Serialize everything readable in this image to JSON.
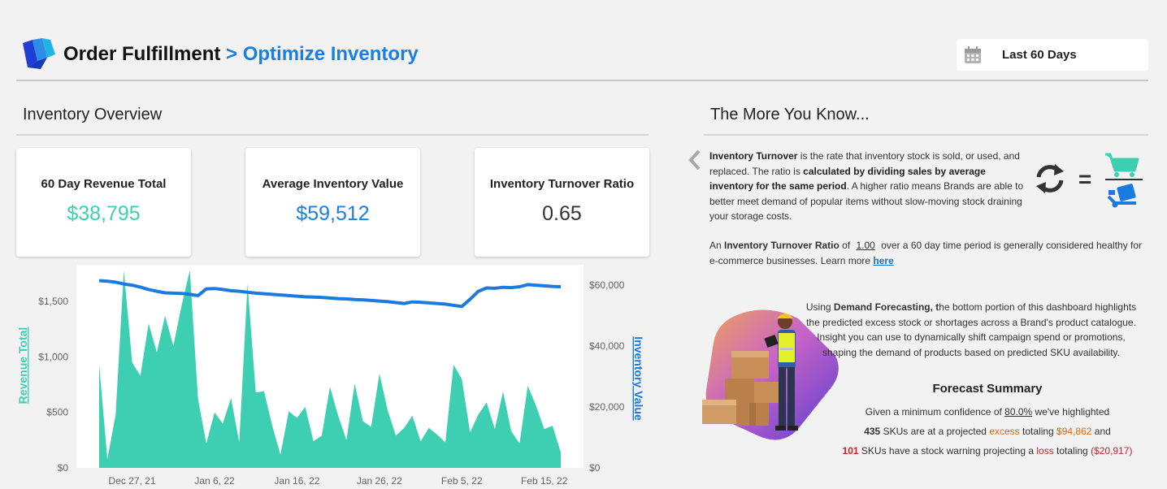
{
  "header": {
    "title_main": "Order Fulfillment",
    "title_sub": "> Optimize Inventory",
    "date_range": "Last 60 Days",
    "icons": {
      "logo": "brand-logo-icon",
      "calendar": "calendar-icon"
    }
  },
  "overview": {
    "title": "Inventory Overview",
    "kpis": [
      {
        "label": "60 Day Revenue Total",
        "value": "$38,795",
        "color": "#3ecfb2"
      },
      {
        "label": "Average Inventory Value",
        "value": "$59,512",
        "color": "#1a7fe0"
      },
      {
        "label": "Inventory Turnover Ratio",
        "value": "0.65",
        "color": "#333333"
      }
    ]
  },
  "chart_data": {
    "type": "area",
    "x": [
      "Dec 23, 21",
      "Dec 24, 21",
      "Dec 25, 21",
      "Dec 26, 21",
      "Dec 27, 21",
      "Dec 28, 21",
      "Dec 29, 21",
      "Dec 30, 21",
      "Dec 31, 21",
      "Jan 1, 22",
      "Jan 2, 22",
      "Jan 3, 22",
      "Jan 4, 22",
      "Jan 5, 22",
      "Jan 6, 22",
      "Jan 7, 22",
      "Jan 8, 22",
      "Jan 9, 22",
      "Jan 10, 22",
      "Jan 11, 22",
      "Jan 12, 22",
      "Jan 13, 22",
      "Jan 14, 22",
      "Jan 15, 22",
      "Jan 16, 22",
      "Jan 17, 22",
      "Jan 18, 22",
      "Jan 19, 22",
      "Jan 20, 22",
      "Jan 21, 22",
      "Jan 22, 22",
      "Jan 23, 22",
      "Jan 24, 22",
      "Jan 25, 22",
      "Jan 26, 22",
      "Jan 27, 22",
      "Jan 28, 22",
      "Jan 29, 22",
      "Jan 30, 22",
      "Jan 31, 22",
      "Feb 1, 22",
      "Feb 2, 22",
      "Feb 3, 22",
      "Feb 4, 22",
      "Feb 5, 22",
      "Feb 6, 22",
      "Feb 7, 22",
      "Feb 8, 22",
      "Feb 9, 22",
      "Feb 10, 22",
      "Feb 11, 22",
      "Feb 12, 22",
      "Feb 13, 22",
      "Feb 14, 22",
      "Feb 15, 22",
      "Feb 16, 22",
      "Feb 17, 22"
    ],
    "series": [
      {
        "name": "Revenue Total",
        "axis": "left",
        "color": "#3ecfb2",
        "values": [
          930,
          80,
          480,
          1780,
          950,
          830,
          1300,
          1040,
          1370,
          1100,
          1460,
          1780,
          620,
          220,
          500,
          400,
          630,
          230,
          1660,
          680,
          690,
          380,
          120,
          510,
          450,
          550,
          240,
          290,
          730,
          470,
          250,
          760,
          420,
          370,
          850,
          520,
          290,
          360,
          470,
          240,
          360,
          300,
          230,
          930,
          800,
          320,
          480,
          590,
          350,
          690,
          330,
          220,
          740,
          560,
          350,
          380,
          140
        ]
      },
      {
        "name": "Inventory Value",
        "axis": "right",
        "color": "#1a7ae0",
        "values": [
          61500,
          61300,
          61000,
          60400,
          60000,
          59400,
          58600,
          58000,
          57500,
          57400,
          57300,
          57000,
          56600,
          58800,
          58900,
          58600,
          58200,
          58000,
          57700,
          57400,
          57200,
          57000,
          56800,
          56600,
          56400,
          56200,
          56100,
          56000,
          55800,
          55600,
          55500,
          55300,
          55200,
          55000,
          54800,
          54600,
          54300,
          54000,
          54500,
          54400,
          54200,
          54000,
          53800,
          53400,
          53000,
          55400,
          58000,
          59100,
          59000,
          59300,
          59200,
          59500,
          60200,
          60000,
          59800,
          59600,
          59500
        ]
      }
    ],
    "x_ticks": [
      "Dec 27, 21",
      "Jan 6, 22",
      "Jan 16, 22",
      "Jan 26, 22",
      "Feb 5, 22",
      "Feb 15, 22"
    ],
    "y_left_ticks": [
      "$0",
      "$500",
      "$1,000",
      "$1,500"
    ],
    "y_right_ticks": [
      "$0",
      "$20,000",
      "$40,000",
      "$60,000"
    ],
    "ylabel_left": "Revenue Total",
    "ylabel_right": "Inventory Value",
    "ylim_left": [
      0,
      1830
    ],
    "ylim_right": [
      0,
      66700
    ]
  },
  "more": {
    "title": "The More You Know...",
    "turnover_p1": "Inventory Turnover",
    "turnover_p2": " is the rate that inventory stock is sold, or used, and replaced. The ratio is ",
    "turnover_p3": "calculated by dividing sales by average inventory for the same period",
    "turnover_p4": ". A higher ratio means Brands are able to better meet demand of popular items without slow-moving stock draining your storage costs.",
    "ratio_p1": "An ",
    "ratio_p2": "Inventory Turnover Ratio",
    "ratio_p3": " of ",
    "ratio_value": "1.00",
    "ratio_p4": " over a 60 day time period is generally considered healthy for e-commerce businesses.  Learn more ",
    "ratio_link": "here",
    "icons": {
      "prev": "chevron-left-icon",
      "refresh": "refresh-icon",
      "cart": "shopping-cart-icon",
      "dolly": "hand-truck-icon"
    },
    "equals": "="
  },
  "forecast": {
    "intro_p1": "Using ",
    "intro_p2": "Demand Forecasting, t",
    "intro_p3": "he bottom portion of this dashboard highlights the predicted excess stock or shortages across a Brand's product catalogue. Insight you can use to dynamically shift campaign spend or promotions, shaping the demand of products based on predicted SKU availability.",
    "summary_title": "Forecast Summary",
    "l1_p1": "Given a minimum confidence of ",
    "l1_conf": "80.0%",
    "l1_p2": " we've highlighted",
    "l2_count": "435",
    "l2_p1": " SKUs are at a projected ",
    "l2_kw": "excess",
    "l2_p2": " totaling ",
    "l2_amt": "$94,862",
    "l2_p3": " and",
    "l3_count": "101",
    "l3_p1": " SKUs have a stock warning projecting a ",
    "l3_kw": "loss",
    "l3_p2": " totaling ",
    "l3_amt": "($20,917)",
    "illustration": "warehouse-worker-illustration"
  }
}
